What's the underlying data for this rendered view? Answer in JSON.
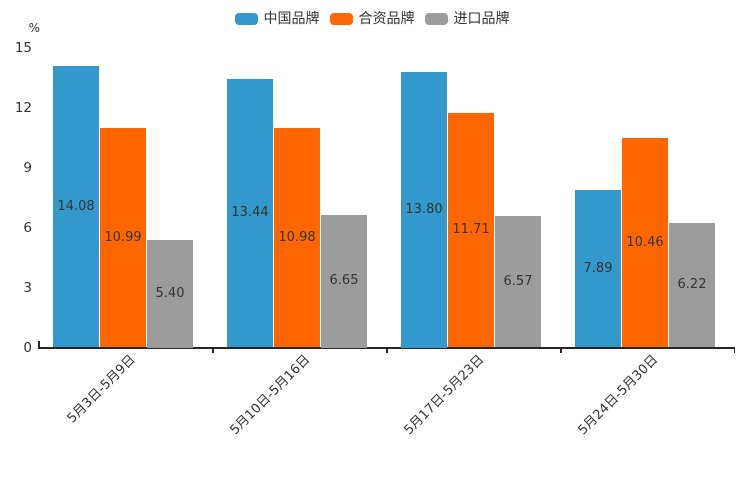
{
  "chart_data": {
    "type": "bar",
    "title": "",
    "unit_label": "%",
    "categories": [
      "5月3日-5月9日",
      "5月10日-5月16日",
      "5月17日-5月23日",
      "5月24日-5月30日"
    ],
    "series": [
      {
        "name": "中国品牌",
        "color": "#3398CB",
        "values": [
          14.08,
          13.44,
          13.8,
          7.89
        ]
      },
      {
        "name": "合资品牌",
        "color": "#FF6600",
        "values": [
          10.99,
          10.98,
          11.71,
          10.46
        ]
      },
      {
        "name": "进口品牌",
        "color": "#9C9C9C",
        "values": [
          5.4,
          6.65,
          6.57,
          6.22
        ]
      }
    ],
    "yticks": [
      0,
      3,
      6,
      9,
      12,
      15
    ],
    "ylim": [
      0,
      15
    ],
    "grid": false,
    "legend_position": "top",
    "value_labels": "inside-center",
    "value_label_decimals": 2
  },
  "colors": {
    "axis": "#262626",
    "text": "#333333",
    "background": "#FFFFFF"
  }
}
